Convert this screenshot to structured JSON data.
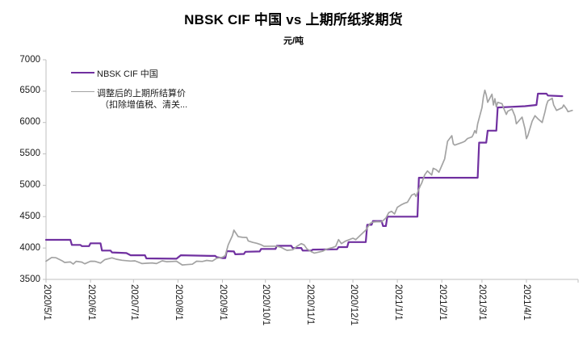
{
  "page": {
    "background": "#FFFFFF"
  },
  "chart_data": {
    "type": "line",
    "title": "NBSK CIF 中国 vs 上期所纸浆期货",
    "unit_label": "元/吨",
    "grid": "off",
    "legend_position": "top-left-inside",
    "axis_color": "#BFBFBF",
    "tick_label_color": "#1A1A1A",
    "y_axis": {
      "min": 3500,
      "max": 7000,
      "step": 500,
      "ticks": [
        7000,
        6500,
        6000,
        5500,
        5000,
        4500,
        4000,
        3500
      ]
    },
    "x_axis": {
      "tick_labels": [
        "2020/5/1",
        "2020/6/1",
        "2020/7/1",
        "2020/8/1",
        "2020/9/1",
        "2020/10/1",
        "2020/11/1",
        "2020/12/1",
        "2021/1/1",
        "2021/2/1",
        "2021/3/1",
        "2021/4/1"
      ]
    },
    "series": [
      {
        "name": "NBSK CIF 中国",
        "color": "#7030A0",
        "width": 2.2,
        "points": [
          [
            "2020-05-01",
            4130
          ],
          [
            "2020-05-18",
            4130
          ],
          [
            "2020-05-19",
            4050
          ],
          [
            "2020-05-25",
            4050
          ],
          [
            "2020-05-26",
            4030
          ],
          [
            "2020-05-31",
            4030
          ],
          [
            "2020-06-01",
            4075
          ],
          [
            "2020-06-08",
            4075
          ],
          [
            "2020-06-09",
            3960
          ],
          [
            "2020-06-15",
            3960
          ],
          [
            "2020-06-16",
            3930
          ],
          [
            "2020-06-26",
            3920
          ],
          [
            "2020-06-29",
            3885
          ],
          [
            "2020-07-09",
            3885
          ],
          [
            "2020-07-10",
            3835
          ],
          [
            "2020-07-31",
            3830
          ],
          [
            "2020-08-03",
            3885
          ],
          [
            "2020-08-24",
            3875
          ],
          [
            "2020-08-27",
            3875
          ],
          [
            "2020-08-28",
            3855
          ],
          [
            "2020-09-01",
            3840
          ],
          [
            "2020-09-03",
            3840
          ],
          [
            "2020-09-04",
            3950
          ],
          [
            "2020-09-09",
            3945
          ],
          [
            "2020-09-10",
            3900
          ],
          [
            "2020-09-16",
            3905
          ],
          [
            "2020-09-17",
            3940
          ],
          [
            "2020-09-27",
            3945
          ],
          [
            "2020-09-28",
            3985
          ],
          [
            "2020-10-08",
            3985
          ],
          [
            "2020-10-09",
            4035
          ],
          [
            "2020-10-19",
            4035
          ],
          [
            "2020-10-20",
            4000
          ],
          [
            "2020-10-26",
            4000
          ],
          [
            "2020-10-27",
            3960
          ],
          [
            "2020-11-02",
            3960
          ],
          [
            "2020-11-03",
            3975
          ],
          [
            "2020-11-20",
            3980
          ],
          [
            "2020-11-21",
            4015
          ],
          [
            "2020-11-27",
            4015
          ],
          [
            "2020-11-28",
            4095
          ],
          [
            "2020-12-10",
            4095
          ],
          [
            "2020-12-11",
            4370
          ],
          [
            "2020-12-14",
            4370
          ],
          [
            "2020-12-15",
            4430
          ],
          [
            "2020-12-21",
            4430
          ],
          [
            "2020-12-22",
            4350
          ],
          [
            "2020-12-24",
            4350
          ],
          [
            "2020-12-25",
            4500
          ],
          [
            "2021-01-15",
            4500
          ],
          [
            "2021-01-16",
            5120
          ],
          [
            "2021-02-26",
            5120
          ],
          [
            "2021-02-27",
            5680
          ],
          [
            "2021-03-04",
            5680
          ],
          [
            "2021-03-05",
            5870
          ],
          [
            "2021-03-11",
            5870
          ],
          [
            "2021-03-12",
            6240
          ],
          [
            "2021-03-31",
            6260
          ],
          [
            "2021-04-08",
            6280
          ],
          [
            "2021-04-09",
            6460
          ],
          [
            "2021-04-15",
            6460
          ],
          [
            "2021-04-16",
            6430
          ],
          [
            "2021-04-26",
            6420
          ]
        ]
      },
      {
        "name": "调整后的上期所结算价",
        "name_line2": "（扣除增值税、清关...",
        "color": "#A3A3A3",
        "width": 1.7,
        "points": [
          [
            "2020-05-01",
            3790
          ],
          [
            "2020-05-05",
            3850
          ],
          [
            "2020-05-08",
            3845
          ],
          [
            "2020-05-12",
            3800
          ],
          [
            "2020-05-14",
            3770
          ],
          [
            "2020-05-18",
            3778
          ],
          [
            "2020-05-20",
            3745
          ],
          [
            "2020-05-22",
            3788
          ],
          [
            "2020-05-26",
            3776
          ],
          [
            "2020-05-28",
            3748
          ],
          [
            "2020-06-01",
            3790
          ],
          [
            "2020-06-04",
            3788
          ],
          [
            "2020-06-08",
            3760
          ],
          [
            "2020-06-11",
            3815
          ],
          [
            "2020-06-16",
            3843
          ],
          [
            "2020-06-19",
            3822
          ],
          [
            "2020-06-23",
            3805
          ],
          [
            "2020-06-29",
            3792
          ],
          [
            "2020-07-02",
            3796
          ],
          [
            "2020-07-07",
            3752
          ],
          [
            "2020-07-10",
            3757
          ],
          [
            "2020-07-14",
            3762
          ],
          [
            "2020-07-17",
            3752
          ],
          [
            "2020-07-21",
            3796
          ],
          [
            "2020-07-24",
            3782
          ],
          [
            "2020-07-28",
            3786
          ],
          [
            "2020-07-31",
            3790
          ],
          [
            "2020-08-04",
            3730
          ],
          [
            "2020-08-07",
            3736
          ],
          [
            "2020-08-11",
            3742
          ],
          [
            "2020-08-14",
            3790
          ],
          [
            "2020-08-18",
            3786
          ],
          [
            "2020-08-21",
            3802
          ],
          [
            "2020-08-25",
            3792
          ],
          [
            "2020-08-28",
            3836
          ],
          [
            "2020-09-01",
            3852
          ],
          [
            "2020-09-03",
            3880
          ],
          [
            "2020-09-05",
            4050
          ],
          [
            "2020-09-08",
            4200
          ],
          [
            "2020-09-09",
            4285
          ],
          [
            "2020-09-12",
            4182
          ],
          [
            "2020-09-15",
            4170
          ],
          [
            "2020-09-18",
            4168
          ],
          [
            "2020-09-19",
            4114
          ],
          [
            "2020-09-22",
            4090
          ],
          [
            "2020-09-25",
            4075
          ],
          [
            "2020-09-28",
            4052
          ],
          [
            "2020-09-30",
            4028
          ],
          [
            "2020-10-09",
            4030
          ],
          [
            "2020-10-12",
            4010
          ],
          [
            "2020-10-14",
            3985
          ],
          [
            "2020-10-16",
            3963
          ],
          [
            "2020-10-20",
            3972
          ],
          [
            "2020-10-23",
            4027
          ],
          [
            "2020-10-26",
            4070
          ],
          [
            "2020-10-28",
            4049
          ],
          [
            "2020-10-30",
            3985
          ],
          [
            "2020-11-02",
            3941
          ],
          [
            "2020-11-04",
            3920
          ],
          [
            "2020-11-06",
            3928
          ],
          [
            "2020-11-10",
            3950
          ],
          [
            "2020-11-13",
            3985
          ],
          [
            "2020-11-17",
            4010
          ],
          [
            "2020-11-19",
            4027
          ],
          [
            "2020-11-21",
            4134
          ],
          [
            "2020-11-23",
            4070
          ],
          [
            "2020-11-26",
            4113
          ],
          [
            "2020-12-01",
            4156
          ],
          [
            "2020-12-03",
            4134
          ],
          [
            "2020-12-07",
            4220
          ],
          [
            "2020-12-10",
            4285
          ],
          [
            "2020-12-13",
            4392
          ],
          [
            "2020-12-15",
            4413
          ],
          [
            "2020-12-18",
            4420
          ],
          [
            "2020-12-21",
            4418
          ],
          [
            "2020-12-24",
            4478
          ],
          [
            "2020-12-26",
            4564
          ],
          [
            "2020-12-28",
            4585
          ],
          [
            "2020-12-30",
            4542
          ],
          [
            "2021-01-01",
            4649
          ],
          [
            "2021-01-04",
            4692
          ],
          [
            "2021-01-06",
            4713
          ],
          [
            "2021-01-08",
            4730
          ],
          [
            "2021-01-11",
            4843
          ],
          [
            "2021-01-13",
            4864
          ],
          [
            "2021-01-14",
            4821
          ],
          [
            "2021-01-17",
            4992
          ],
          [
            "2021-01-18",
            5035
          ],
          [
            "2021-01-20",
            5164
          ],
          [
            "2021-01-22",
            5228
          ],
          [
            "2021-01-25",
            5164
          ],
          [
            "2021-01-26",
            5271
          ],
          [
            "2021-01-28",
            5250
          ],
          [
            "2021-01-30",
            5207
          ],
          [
            "2021-02-01",
            5314
          ],
          [
            "2021-02-03",
            5420
          ],
          [
            "2021-02-04",
            5560
          ],
          [
            "2021-02-05",
            5700
          ],
          [
            "2021-02-08",
            5790
          ],
          [
            "2021-02-09",
            5660
          ],
          [
            "2021-02-10",
            5640
          ],
          [
            "2021-02-15",
            5680
          ],
          [
            "2021-02-17",
            5700
          ],
          [
            "2021-02-19",
            5745
          ],
          [
            "2021-02-22",
            5770
          ],
          [
            "2021-02-23",
            5810
          ],
          [
            "2021-02-24",
            5870
          ],
          [
            "2021-02-25",
            5830
          ],
          [
            "2021-02-26",
            5980
          ],
          [
            "2021-03-01",
            6236
          ],
          [
            "2021-03-02",
            6410
          ],
          [
            "2021-03-03",
            6515
          ],
          [
            "2021-03-04",
            6440
          ],
          [
            "2021-03-05",
            6322
          ],
          [
            "2021-03-08",
            6451
          ],
          [
            "2021-03-09",
            6280
          ],
          [
            "2021-03-10",
            6380
          ],
          [
            "2021-03-11",
            6250
          ],
          [
            "2021-03-12",
            6322
          ],
          [
            "2021-03-15",
            6300
          ],
          [
            "2021-03-16",
            6237
          ],
          [
            "2021-03-18",
            6129
          ],
          [
            "2021-03-19",
            6180
          ],
          [
            "2021-03-22",
            6215
          ],
          [
            "2021-03-24",
            6100
          ],
          [
            "2021-03-25",
            5979
          ],
          [
            "2021-03-29",
            6086
          ],
          [
            "2021-03-31",
            5900
          ],
          [
            "2021-04-01",
            5743
          ],
          [
            "2021-04-02",
            5790
          ],
          [
            "2021-04-05",
            6022
          ],
          [
            "2021-04-07",
            6108
          ],
          [
            "2021-04-09",
            6060
          ],
          [
            "2021-04-12",
            6000
          ],
          [
            "2021-04-14",
            6172
          ],
          [
            "2021-04-15",
            6280
          ],
          [
            "2021-04-16",
            6344
          ],
          [
            "2021-04-19",
            6386
          ],
          [
            "2021-04-20",
            6280
          ],
          [
            "2021-04-22",
            6193
          ],
          [
            "2021-04-26",
            6237
          ],
          [
            "2021-04-27",
            6280
          ],
          [
            "2021-04-29",
            6215
          ],
          [
            "2021-04-30",
            6172
          ],
          [
            "2021-05-03",
            6193
          ]
        ]
      }
    ]
  }
}
